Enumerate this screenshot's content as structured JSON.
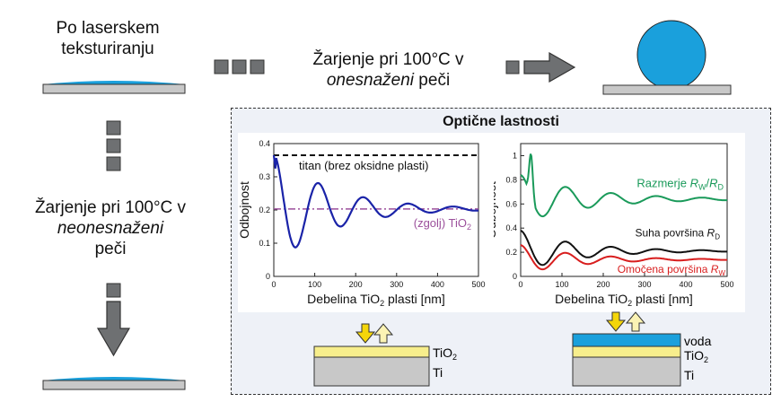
{
  "top_left": {
    "line1": "Po laserskem",
    "line2": "teksturiranju"
  },
  "top_middle": {
    "line1": "Žarjenje pri 100°C v",
    "line2_italic": "onesnaženi",
    "line2_rest": " peči"
  },
  "left_middle": {
    "line1": "Žarjenje pri 100°C v",
    "line2_italic": "neonesnaženi",
    "line3": "peči"
  },
  "optical_box": {
    "title": "Optične lastnosti"
  },
  "colors": {
    "water": "#1aa0dc",
    "substrate": "#c8c8c8",
    "tio2": "#f7ee8c",
    "arrow_yellow": "#f4d60a",
    "arrow_light": "#fbf3b4",
    "box_bg": "#eef1f7",
    "grey_block": "#6e7072"
  },
  "chart_left": {
    "type": "line",
    "xlabel": "Debelina TiO2 plasti [nm]",
    "ylabel": "Odbojnost",
    "xlim": [
      0,
      500
    ],
    "ylim": [
      0,
      0.4
    ],
    "xticks": [
      "0",
      "100",
      "200",
      "300",
      "400",
      "500"
    ],
    "yticks": [
      "0",
      "0.1",
      "0.2",
      "0.3",
      "0.4"
    ],
    "titanium_level": 0.365,
    "titanium_label": "titan (brez oksidne plasti)",
    "tio2_level": 0.203,
    "tio2_label": "(zgolj) TiO2",
    "damped_curve": {
      "name": "Reflectance vs thickness",
      "baseline": 0.203,
      "amplitude": 0.17,
      "period_nm": 110,
      "decay_nm": 140
    }
  },
  "chart_right": {
    "type": "line",
    "xlabel": "Debelina TiO2 plasti [nm]",
    "ylabel": "Odbojnost",
    "xlim": [
      0,
      500
    ],
    "ylim": [
      0,
      1.1
    ],
    "xticks": [
      "0",
      "100",
      "200",
      "300",
      "400",
      "500"
    ],
    "yticks": [
      "0",
      "0.2",
      "0.4",
      "0.6",
      "0.8",
      "1"
    ],
    "series": [
      {
        "name": "Razmerje RW/RD",
        "color": "#1a9a5a",
        "baseline": 0.64,
        "amplitude": 0.2,
        "period_nm": 110,
        "decay_nm": 160
      },
      {
        "name": "Suha površina RD",
        "color": "#111111",
        "baseline": 0.21,
        "amplitude": 0.17,
        "period_nm": 110,
        "decay_nm": 140
      },
      {
        "name": "Omočena površina RW",
        "color": "#d81e1e",
        "baseline": 0.14,
        "amplitude": 0.12,
        "period_nm": 110,
        "decay_nm": 140
      }
    ],
    "labels": {
      "ratio": "Razmerje RW/RD",
      "dry_pre": "Suha površina ",
      "dry_sym": "R",
      "dry_sub": "D",
      "wet_pre": "Omočena površina ",
      "wet_sym": "R",
      "wet_sub": "W",
      "ratio_pre": "Razmerje ",
      "ratio_sym1": "R",
      "ratio_sub1": "W",
      "ratio_sym2": "R",
      "ratio_sub2": "D"
    }
  },
  "stack_left": {
    "tio2": "TiO2",
    "ti": "Ti"
  },
  "stack_right": {
    "water": "voda",
    "tio2": "TiO2",
    "ti": "Ti"
  },
  "sub_o2": "2",
  "axis_word_prefix": "Debelina TiO",
  "axis_word_suffix": " plasti [nm]",
  "zgolj_prefix": "(zgolj) TiO"
}
